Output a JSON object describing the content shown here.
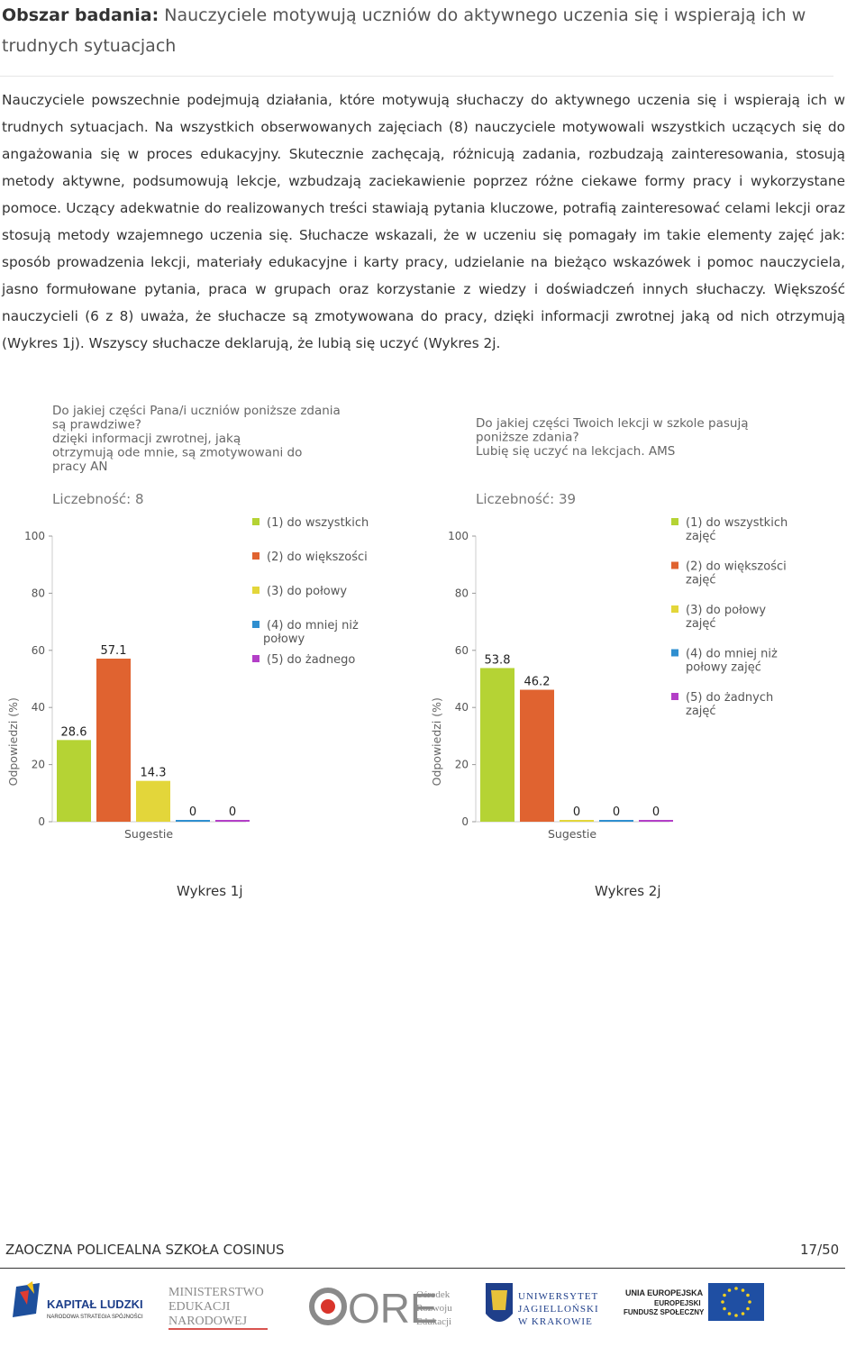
{
  "heading": {
    "label": "Obszar badania:",
    "text": "Nauczyciele motywują uczniów do aktywnego uczenia się i wspierają ich w trudnych sytuacjach"
  },
  "paragraph": "Nauczyciele powszechnie podejmują działania, które motywują słuchaczy do aktywnego uczenia się i wspierają ich w trudnych sytuacjach. Na wszystkich obserwowanych zajęciach (8) nauczyciele motywowali wszystkich uczących się do angażowania się w proces edukacyjny. Skutecznie zachęcają, różnicują zadania, rozbudzają zainteresowania, stosują metody aktywne, podsumowują lekcje, wzbudzają zaciekawienie poprzez różne ciekawe formy pracy i wykorzystane pomoce. Uczący adekwatnie do realizowanych treści stawiają pytania kluczowe, potrafią zainteresować celami lekcji oraz stosują metody wzajemnego uczenia się. Słuchacze wskazali, że w uczeniu się pomagały im takie elementy zajęć jak: sposób prowadzenia lekcji, materiały edukacyjne i karty pracy, udzielanie na bieżąco wskazówek i pomoc nauczyciela, jasno formułowane pytania, praca w grupach oraz korzystanie z wiedzy i doświadczeń innych słuchaczy. Większość nauczycieli (6 z 8) uważa, że słuchacze są zmotywowana do pracy, dzięki informacji zwrotnej jaką od nich otrzymują (Wykres 1j). Wszyscy słuchacze deklarują, że lubią się uczyć (Wykres 2j.",
  "chart_data": [
    {
      "type": "bar",
      "title_lines": [
        "Do  jakiej części Pana/i uczniów poniższe zdania",
        "są prawdziwe?",
        "dzięki informacji zwrotnej, jaką",
        "otrzymują ode mnie, są zmotywowani do",
        "pracy AN"
      ],
      "count_label": "Liczebność: 8",
      "ylabel": "Odpowiedzi (%)",
      "xlabel": "Sugestie",
      "ylim": [
        0,
        100
      ],
      "yticks": [
        0,
        20,
        40,
        60,
        80,
        100
      ],
      "series": [
        {
          "legend_lines": [
            "(1) do wszystkich"
          ],
          "value": 28.6,
          "label": "28.6",
          "color": "#b5d334"
        },
        {
          "legend_lines": [
            "(2) do większości"
          ],
          "value": 57.1,
          "label": "57.1",
          "color": "#e06330"
        },
        {
          "legend_lines": [
            "(3) do połowy"
          ],
          "value": 14.3,
          "label": "14.3",
          "color": "#e3d63a"
        },
        {
          "legend_lines": [
            "(4) do mniej niż",
            "połowy"
          ],
          "value": 0,
          "label": "0",
          "color": "#2f8fd0"
        },
        {
          "legend_lines": [
            "(5) do żadnego"
          ],
          "value": 0,
          "label": "0",
          "color": "#b33fc7"
        }
      ],
      "caption": "Wykres 1j"
    },
    {
      "type": "bar",
      "title_lines": [
        "Do jakiej części Twoich lekcji w szkole pasują",
        "poniższe zdania?",
        "Lubię się uczyć na lekcjach. AMS"
      ],
      "count_label": "Liczebność: 39",
      "ylabel": "Odpowiedzi (%)",
      "xlabel": "Sugestie",
      "ylim": [
        0,
        100
      ],
      "yticks": [
        0,
        20,
        40,
        60,
        80,
        100
      ],
      "series": [
        {
          "legend_lines": [
            "(1) do wszystkich",
            "zajęć"
          ],
          "value": 53.8,
          "label": "53.8",
          "color": "#b5d334"
        },
        {
          "legend_lines": [
            "(2) do większości",
            "zajęć"
          ],
          "value": 46.2,
          "label": "46.2",
          "color": "#e06330"
        },
        {
          "legend_lines": [
            "(3) do połowy",
            "zajęć"
          ],
          "value": 0,
          "label": "0",
          "color": "#e3d63a"
        },
        {
          "legend_lines": [
            "(4) do mniej niż",
            "połowy zajęć"
          ],
          "value": 0,
          "label": "0",
          "color": "#2f8fd0"
        },
        {
          "legend_lines": [
            "(5) do żadnych",
            "zajęć"
          ],
          "value": 0,
          "label": "0",
          "color": "#b33fc7"
        }
      ],
      "caption": "Wykres 2j"
    }
  ],
  "footer": {
    "school": "ZAOCZNA POLICEALNA SZKOŁA COSINUS",
    "page": "17/50"
  },
  "logos": {
    "kapital": {
      "line1": "KAPITAŁ LUDZKI",
      "line2": "NARODOWA STRATEGIA SPÓJNOŚCI"
    },
    "men": {
      "line1": "MINISTERSTWO",
      "line2": "EDUKACJI",
      "line3": "NARODOWEJ"
    },
    "ore": {
      "mark": "ORE",
      "line1": "Ośrodek",
      "line2": "Rozwoju",
      "line3": "Edukacji"
    },
    "uj": {
      "line1": "UNIWERSYTET",
      "line2": "JAGIELLOŃSKI",
      "line3": "W KRAKOWIE"
    },
    "ue": {
      "line1": "UNIA EUROPEJSKA",
      "line2": "EUROPEJSKI",
      "line3": "FUNDUSZ SPOŁECZNY"
    }
  }
}
